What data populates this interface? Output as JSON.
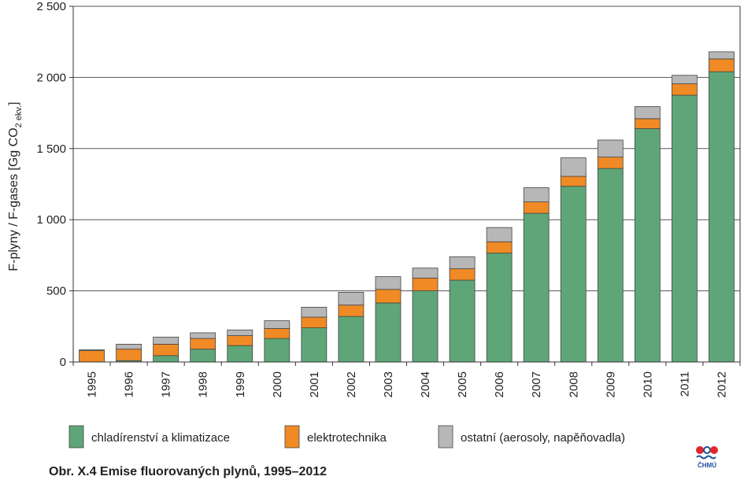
{
  "chart_data": {
    "type": "bar",
    "stacked": true,
    "categories": [
      "1995",
      "1996",
      "1997",
      "1998",
      "1999",
      "2000",
      "2001",
      "2002",
      "2003",
      "2004",
      "2005",
      "2006",
      "2007",
      "2008",
      "2009",
      "2010",
      "2011",
      "2012"
    ],
    "series": [
      {
        "name": "chladírenství a klimatizace",
        "color": "#5ea678",
        "values": [
          0,
          10,
          45,
          90,
          115,
          165,
          240,
          320,
          415,
          500,
          575,
          765,
          1045,
          1235,
          1360,
          1640,
          1875,
          2040
        ]
      },
      {
        "name": "elektrotechnika",
        "color": "#f08a24",
        "values": [
          80,
          80,
          80,
          75,
          70,
          70,
          75,
          80,
          95,
          90,
          80,
          80,
          80,
          70,
          80,
          70,
          80,
          90
        ]
      },
      {
        "name": "ostatní (aerosoly, napěňovadla)",
        "color": "#b7b7b7",
        "values": [
          5,
          35,
          50,
          40,
          40,
          55,
          70,
          90,
          90,
          70,
          85,
          100,
          100,
          130,
          120,
          85,
          60,
          50
        ]
      }
    ],
    "ylim": [
      0,
      2500
    ],
    "yticks": [
      0,
      500,
      1000,
      1500,
      2000,
      2500
    ],
    "ytick_labels": [
      "0",
      "500",
      "1 000",
      "1 500",
      "2 000",
      "2 500"
    ],
    "ylabel_main": "F-plyny / F-gases [Gg CO",
    "ylabel_sub": "2 ekv.",
    "ylabel_close": "]",
    "grid": true,
    "legend_position": "bottom"
  },
  "caption": "Obr. X.4  Emise fluorovaných plynů, 1995–2012",
  "logo_text": "ČHMÚ"
}
